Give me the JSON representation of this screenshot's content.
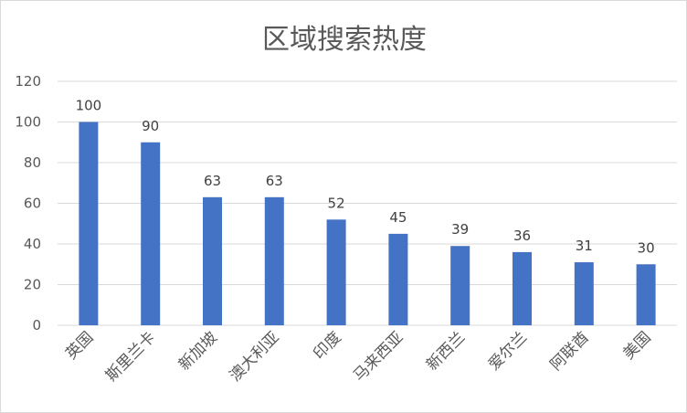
{
  "chart_data": {
    "type": "bar",
    "title": "区域搜索热度",
    "xlabel": "",
    "ylabel": "",
    "categories": [
      "英国",
      "斯里兰卡",
      "新加坡",
      "澳大利亚",
      "印度",
      "马来西亚",
      "新西兰",
      "爱尔兰",
      "阿联酋",
      "美国"
    ],
    "values": [
      100,
      90,
      63,
      63,
      52,
      45,
      39,
      36,
      31,
      30
    ],
    "ylim": [
      0,
      120
    ],
    "yticks": [
      0,
      20,
      40,
      60,
      80,
      100,
      120
    ],
    "grid": true,
    "legend": "none",
    "bar_color": "#4472C4",
    "grid_color": "#d9d9d9"
  }
}
